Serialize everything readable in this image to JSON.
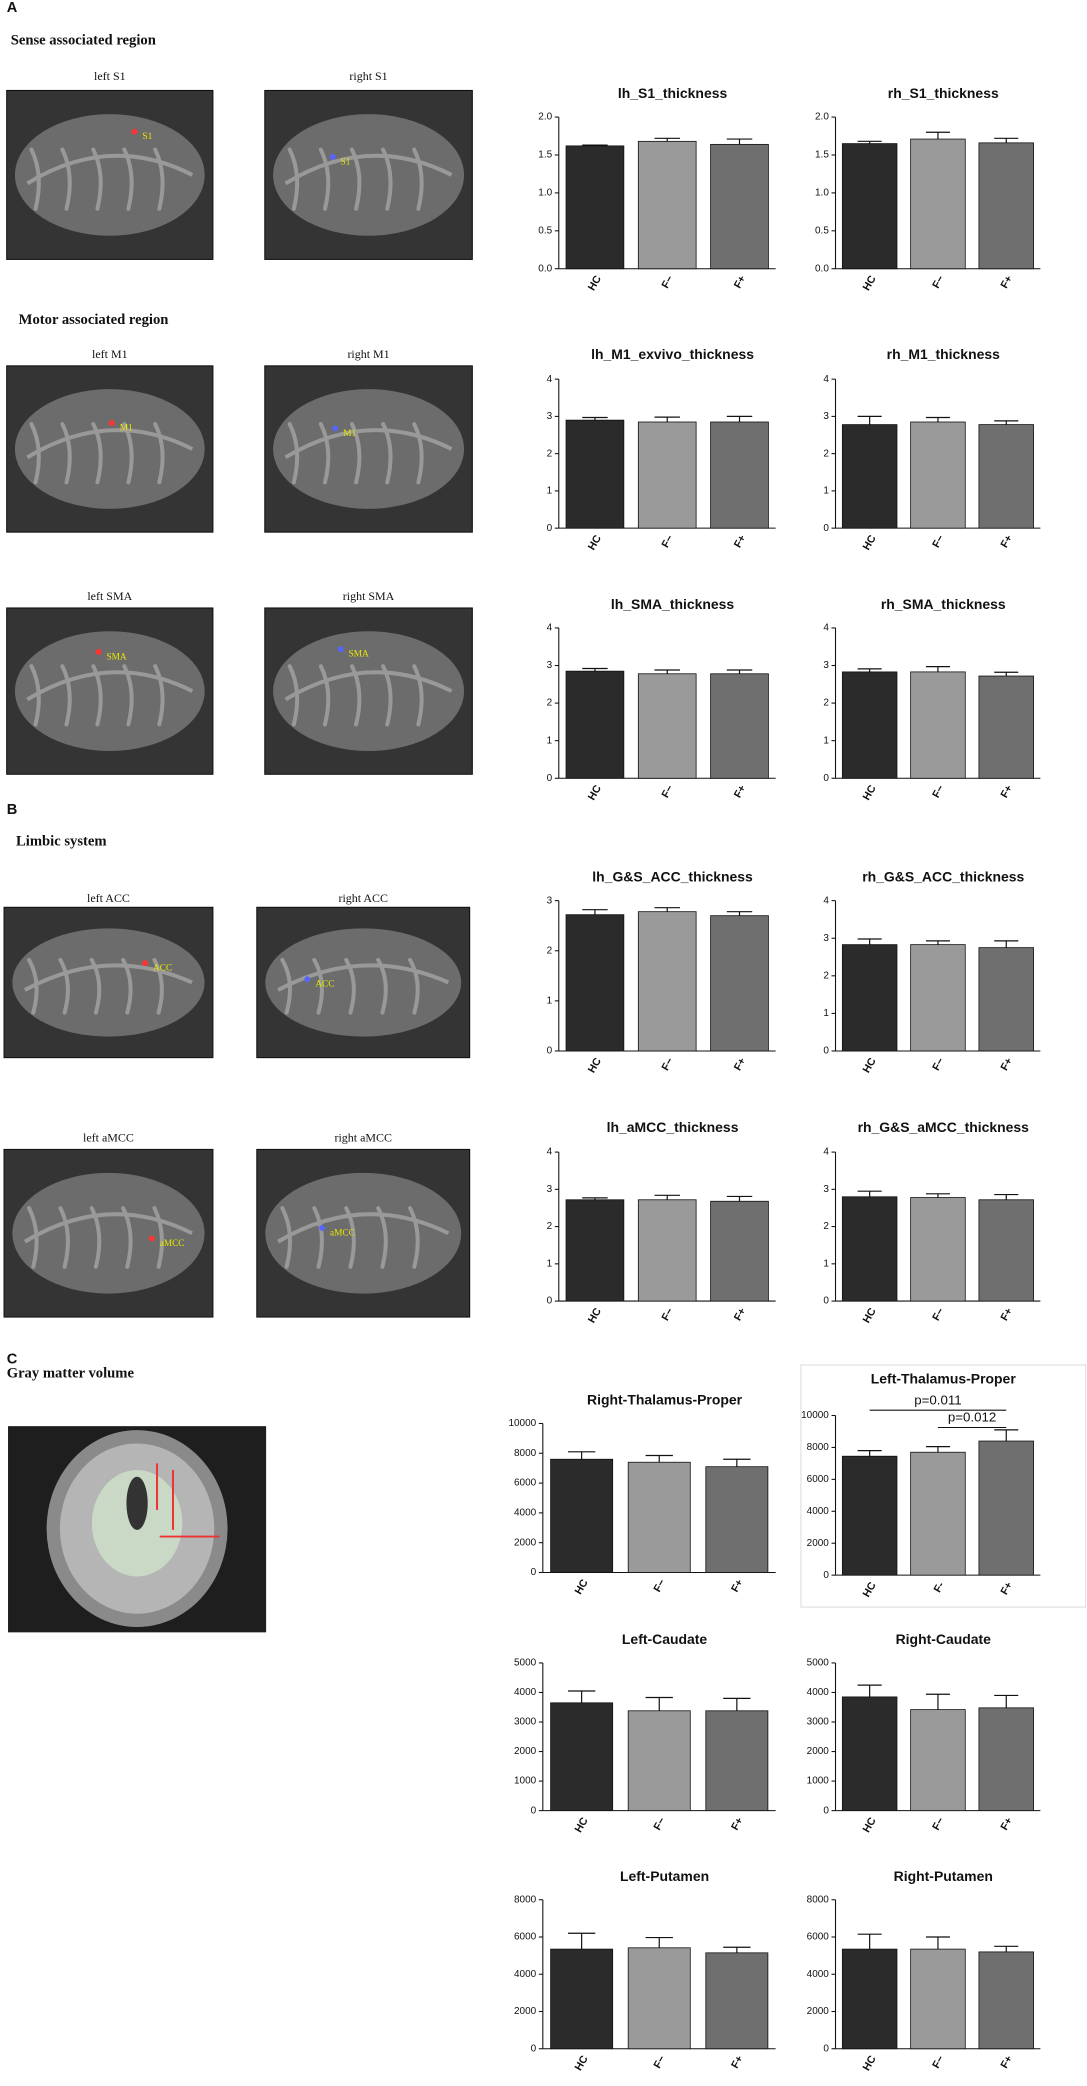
{
  "figure": {
    "panel_labels": [
      "A",
      "B",
      "C"
    ],
    "section_titles": [
      "Sense associated region",
      "Motor associated region",
      "Limbic system",
      "Gray matter volume"
    ],
    "image_titles": [
      "left S1",
      "right S1",
      "left M1",
      "right M1",
      "left SMA",
      "right SMA",
      "left ACC",
      "right ACC",
      "left aMCC",
      "right aMCC"
    ],
    "image_labels": [
      "S1",
      "S1",
      "M1",
      "M1",
      "SMA",
      "SMA",
      "ACC",
      "ACC",
      "aMCC",
      "aMCC"
    ]
  },
  "chart_data": [
    {
      "type": "bar",
      "title": "lh_S1_thickness",
      "categories": [
        "HC",
        "F−",
        "F+"
      ],
      "values": [
        1.62,
        1.68,
        1.64
      ],
      "errors": [
        0.01,
        0.04,
        0.07
      ],
      "colors": [
        "#2b2b2b",
        "#9a9a9a",
        "#6f6f6f"
      ],
      "ylim": [
        0,
        2
      ],
      "yticks": [
        {
          "value": 0,
          "label": "0.0"
        },
        0.5,
        {
          "value": 1,
          "label": "1.0"
        },
        1.5,
        {
          "value": 2,
          "label": "2.0"
        }
      ]
    },
    {
      "type": "bar",
      "title": "rh_S1_thickness",
      "categories": [
        "HC",
        "F−",
        "F+"
      ],
      "values": [
        1.65,
        1.71,
        1.66
      ],
      "errors": [
        0.03,
        0.09,
        0.06
      ],
      "colors": [
        "#2b2b2b",
        "#9a9a9a",
        "#6f6f6f"
      ],
      "ylim": [
        0,
        2
      ],
      "yticks": [
        {
          "value": 0,
          "label": "0.0"
        },
        0.5,
        {
          "value": 1,
          "label": "1.0"
        },
        1.5,
        {
          "value": 2,
          "label": "2.0"
        }
      ]
    },
    {
      "type": "bar",
      "title": "lh_M1_exvivo_thickness",
      "categories": [
        "HC",
        "F−",
        "F+"
      ],
      "values": [
        2.9,
        2.85,
        2.85
      ],
      "errors": [
        0.07,
        0.13,
        0.15
      ],
      "colors": [
        "#2b2b2b",
        "#9a9a9a",
        "#6f6f6f"
      ],
      "ylim": [
        0,
        4
      ],
      "yticks": [
        0,
        1,
        2,
        3,
        4
      ]
    },
    {
      "type": "bar",
      "title": "rh_M1_thickness",
      "categories": [
        "HC",
        "F−",
        "F+"
      ],
      "values": [
        2.78,
        2.85,
        2.78
      ],
      "errors": [
        0.22,
        0.12,
        0.1
      ],
      "colors": [
        "#2b2b2b",
        "#9a9a9a",
        "#6f6f6f"
      ],
      "ylim": [
        0,
        4
      ],
      "yticks": [
        0,
        1,
        2,
        3,
        4
      ]
    },
    {
      "type": "bar",
      "title": "lh_SMA_thickness",
      "categories": [
        "HC",
        "F−",
        "F+"
      ],
      "values": [
        2.85,
        2.78,
        2.78
      ],
      "errors": [
        0.07,
        0.1,
        0.1
      ],
      "colors": [
        "#2b2b2b",
        "#9a9a9a",
        "#6f6f6f"
      ],
      "ylim": [
        0,
        4
      ],
      "yticks": [
        0,
        1,
        2,
        3,
        4
      ]
    },
    {
      "type": "bar",
      "title": "rh_SMA_thickness",
      "categories": [
        "HC",
        "F−",
        "F+"
      ],
      "values": [
        2.83,
        2.83,
        2.72
      ],
      "errors": [
        0.08,
        0.14,
        0.1
      ],
      "colors": [
        "#2b2b2b",
        "#9a9a9a",
        "#6f6f6f"
      ],
      "ylim": [
        0,
        4
      ],
      "yticks": [
        0,
        1,
        2,
        3,
        4
      ]
    },
    {
      "type": "bar",
      "title": "lh_G&S_ACC_thickness",
      "categories": [
        "HC",
        "F−",
        "F+"
      ],
      "values": [
        2.72,
        2.78,
        2.7
      ],
      "errors": [
        0.1,
        0.08,
        0.08
      ],
      "colors": [
        "#2b2b2b",
        "#9a9a9a",
        "#6f6f6f"
      ],
      "ylim": [
        0,
        3
      ],
      "yticks": [
        0,
        1,
        2,
        3
      ]
    },
    {
      "type": "bar",
      "title": "rh_G&S_ACC_thickness",
      "categories": [
        "HC",
        "F−",
        "F+"
      ],
      "values": [
        2.83,
        2.83,
        2.75
      ],
      "errors": [
        0.15,
        0.1,
        0.18
      ],
      "colors": [
        "#2b2b2b",
        "#9a9a9a",
        "#6f6f6f"
      ],
      "ylim": [
        0,
        4
      ],
      "yticks": [
        0,
        1,
        2,
        3,
        4
      ]
    },
    {
      "type": "bar",
      "title": "lh_aMCC_thickness",
      "categories": [
        "HC",
        "F−",
        "F+"
      ],
      "values": [
        2.72,
        2.72,
        2.68
      ],
      "errors": [
        0.05,
        0.12,
        0.13
      ],
      "colors": [
        "#2b2b2b",
        "#9a9a9a",
        "#6f6f6f"
      ],
      "ylim": [
        0,
        4
      ],
      "yticks": [
        0,
        1,
        2,
        3,
        4
      ]
    },
    {
      "type": "bar",
      "title": "rh_G&S_aMCC_thickness",
      "categories": [
        "HC",
        "F−",
        "F+"
      ],
      "values": [
        2.8,
        2.78,
        2.72
      ],
      "errors": [
        0.15,
        0.1,
        0.14
      ],
      "colors": [
        "#2b2b2b",
        "#9a9a9a",
        "#6f6f6f"
      ],
      "ylim": [
        0,
        4
      ],
      "yticks": [
        0,
        1,
        2,
        3,
        4
      ]
    },
    {
      "type": "bar",
      "title": "Right-Thalamus-Proper",
      "categories": [
        "HC",
        "F−",
        "F+"
      ],
      "values": [
        7600,
        7400,
        7100
      ],
      "errors": [
        500,
        450,
        500
      ],
      "colors": [
        "#2b2b2b",
        "#9a9a9a",
        "#6f6f6f"
      ],
      "ylim": [
        0,
        10000
      ],
      "yticks": [
        0,
        2000,
        4000,
        6000,
        8000,
        10000
      ]
    },
    {
      "type": "bar",
      "title": "Left-Thalamus-Proper",
      "categories": [
        "HC",
        "F-",
        "F+"
      ],
      "values": [
        7450,
        7700,
        8400
      ],
      "errors": [
        350,
        350,
        700
      ],
      "colors": [
        "#2b2b2b",
        "#9a9a9a",
        "#6f6f6f"
      ],
      "ylim": [
        0,
        10000
      ],
      "yticks": [
        0,
        2000,
        4000,
        6000,
        8000,
        10000
      ],
      "annotations": [
        "p=0.011",
        "p=0.012"
      ]
    },
    {
      "type": "bar",
      "title": "Left-Caudate",
      "categories": [
        "HC",
        "F−",
        "F+"
      ],
      "values": [
        3650,
        3380,
        3380
      ],
      "errors": [
        400,
        450,
        420
      ],
      "colors": [
        "#2b2b2b",
        "#9a9a9a",
        "#6f6f6f"
      ],
      "ylim": [
        0,
        5000
      ],
      "yticks": [
        0,
        1000,
        2000,
        3000,
        4000,
        5000
      ]
    },
    {
      "type": "bar",
      "title": "Right-Caudate",
      "categories": [
        "HC",
        "F−",
        "F+"
      ],
      "values": [
        3850,
        3420,
        3480
      ],
      "errors": [
        400,
        520,
        420
      ],
      "colors": [
        "#2b2b2b",
        "#9a9a9a",
        "#6f6f6f"
      ],
      "ylim": [
        0,
        5000
      ],
      "yticks": [
        0,
        1000,
        2000,
        3000,
        4000,
        5000
      ]
    },
    {
      "type": "bar",
      "title": "Left-Putamen",
      "categories": [
        "HC",
        "F−",
        "F+"
      ],
      "values": [
        5350,
        5420,
        5150
      ],
      "errors": [
        850,
        550,
        300
      ],
      "colors": [
        "#2b2b2b",
        "#9a9a9a",
        "#6f6f6f"
      ],
      "ylim": [
        0,
        8000
      ],
      "yticks": [
        0,
        2000,
        4000,
        6000,
        8000
      ]
    },
    {
      "type": "bar",
      "title": "Right-Putamen",
      "categories": [
        "HC",
        "F−",
        "F+"
      ],
      "values": [
        5350,
        5350,
        5200
      ],
      "errors": [
        800,
        650,
        300
      ],
      "colors": [
        "#2b2b2b",
        "#9a9a9a",
        "#6f6f6f"
      ],
      "ylim": [
        0,
        8000
      ],
      "yticks": [
        0,
        2000,
        4000,
        6000,
        8000
      ]
    }
  ]
}
